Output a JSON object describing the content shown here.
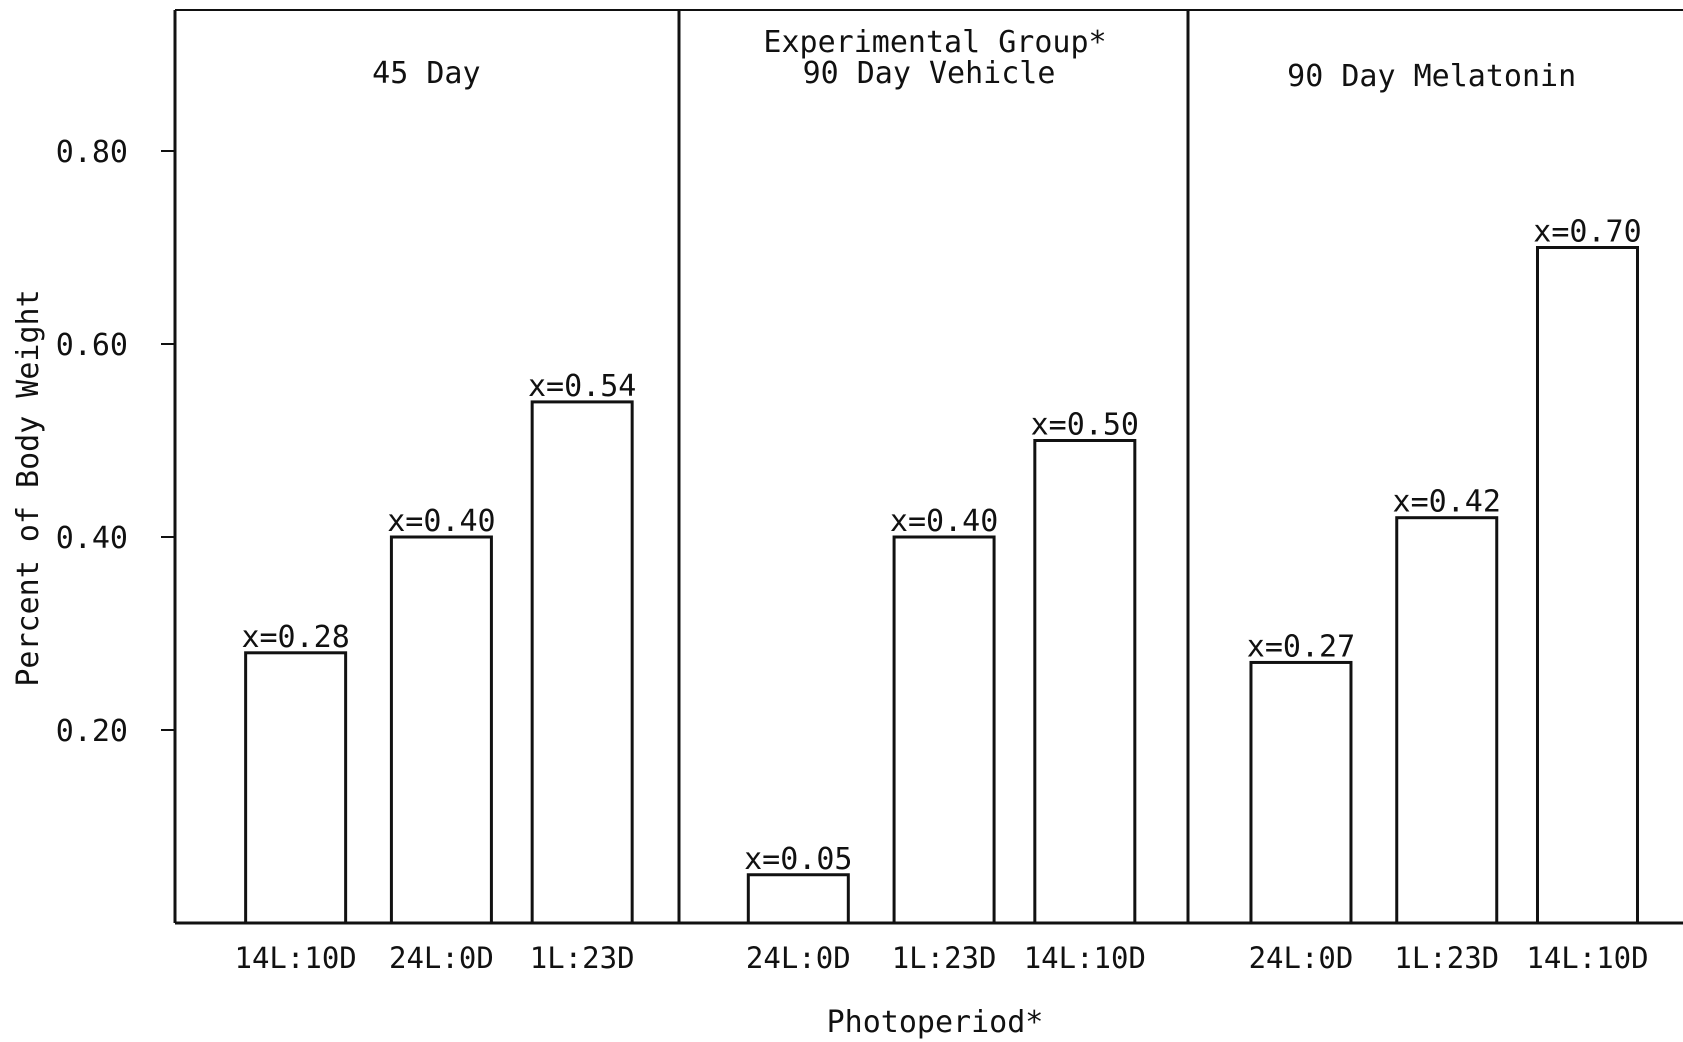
{
  "chart_data": {
    "type": "bar",
    "title": "Experimental Group*",
    "xlabel": "Photoperiod*",
    "ylabel": "Percent of Body Weight",
    "ylim": [
      0,
      0.95
    ],
    "yticks": [
      "0.20",
      "0.40",
      "0.60",
      "0.80"
    ],
    "grid": false,
    "panels": [
      {
        "name": "45 Day",
        "bars": [
          {
            "category": "14L:10D",
            "value": 0.28,
            "label": "x=0.28"
          },
          {
            "category": "24L:0D",
            "value": 0.4,
            "label": "x=0.40"
          },
          {
            "category": "1L:23D",
            "value": 0.54,
            "label": "x=0.54"
          }
        ]
      },
      {
        "name": "90 Day Vehicle",
        "bars": [
          {
            "category": "24L:0D",
            "value": 0.05,
            "label": "x=0.05"
          },
          {
            "category": "1L:23D",
            "value": 0.4,
            "label": "x=0.40"
          },
          {
            "category": "14L:10D",
            "value": 0.5,
            "label": "x=0.50"
          }
        ]
      },
      {
        "name": "90 Day Melatonin",
        "bars": [
          {
            "category": "24L:0D",
            "value": 0.27,
            "label": "x=0.27"
          },
          {
            "category": "1L:23D",
            "value": 0.42,
            "label": "x=0.42"
          },
          {
            "category": "14L:10D",
            "value": 0.7,
            "label": "x=0.70"
          }
        ]
      }
    ]
  }
}
